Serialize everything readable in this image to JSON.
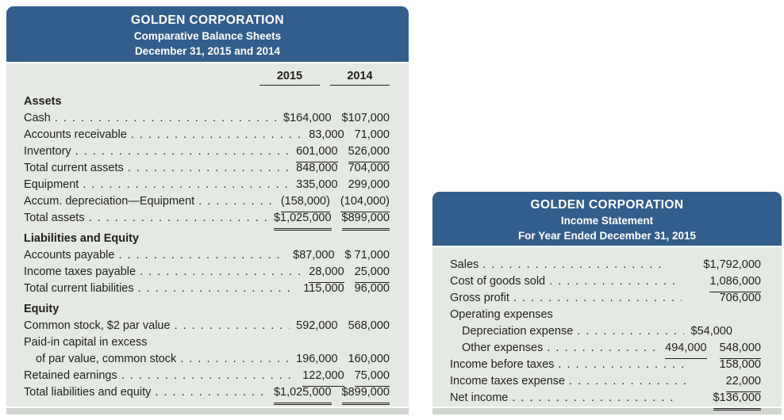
{
  "colors": {
    "header_blue": "#335e8c",
    "body_background": "#e4e9e3",
    "text_ink": "#221f1f",
    "bottom_strip": "#d2d6d1"
  },
  "balance_sheet": {
    "title": "GOLDEN CORPORATION",
    "line2": "Comparative Balance Sheets",
    "line3": "December 31, 2015 and 2014",
    "col_2015": "2015",
    "col_2014": "2014",
    "rows": [
      {
        "label": "Assets",
        "bold": true
      },
      {
        "label": "Cash",
        "dots": true,
        "cells": [
          {
            "pre": "$",
            "num": "164,000"
          },
          {
            "num": "$107,000"
          }
        ]
      },
      {
        "label": "Accounts receivable",
        "dots": true,
        "cells": [
          {
            "num": "83,000"
          },
          {
            "num": "71,000"
          }
        ]
      },
      {
        "label": "Inventory",
        "dots": true,
        "cells": [
          {
            "num": "601,000",
            "u": 1
          },
          {
            "num": "526,000",
            "u": 1
          }
        ]
      },
      {
        "label": "Total current assets",
        "dots": true,
        "cells": [
          {
            "num": "848,000"
          },
          {
            "num": "704,000"
          }
        ]
      },
      {
        "label": "Equipment",
        "dots": true,
        "cells": [
          {
            "num": "335,000"
          },
          {
            "num": "299,000"
          }
        ]
      },
      {
        "label": "Accum. depreciation—Equipment",
        "dots": true,
        "cells": [
          {
            "num": "(158,000)",
            "u": 1
          },
          {
            "num": "(104,000)",
            "u": 1
          }
        ]
      },
      {
        "label": "Total assets",
        "dots": true,
        "cells": [
          {
            "num": "$1,025,000",
            "u": 2
          },
          {
            "num": "$899,000",
            "u": 2
          }
        ]
      },
      {
        "label": "Liabilities and Equity",
        "bold": true,
        "section": true
      },
      {
        "label": "Accounts payable",
        "dots": true,
        "cells": [
          {
            "pre": "$",
            "num": "87,000"
          },
          {
            "num": "$ 71,000"
          }
        ]
      },
      {
        "label": "Income taxes payable",
        "dots": true,
        "cells": [
          {
            "num": "28,000",
            "u": 1
          },
          {
            "num": "25,000",
            "u": 1
          }
        ]
      },
      {
        "label": "Total current liabilities",
        "dots": true,
        "cells": [
          {
            "num": "115,000"
          },
          {
            "num": "96,000"
          }
        ]
      },
      {
        "label": "Equity",
        "bold": true,
        "section": true
      },
      {
        "label": "Common stock, $2 par value",
        "dots": true,
        "cells": [
          {
            "num": "592,000"
          },
          {
            "num": "568,000"
          }
        ]
      },
      {
        "label": "Paid-in capital in excess"
      },
      {
        "label": "of par value, common stock",
        "indent": 1,
        "dots": true,
        "cells": [
          {
            "num": "196,000"
          },
          {
            "num": "160,000"
          }
        ]
      },
      {
        "label": "Retained earnings",
        "dots": true,
        "cells": [
          {
            "num": "122,000",
            "u": 1
          },
          {
            "num": "75,000",
            "u": 1
          }
        ]
      },
      {
        "label": "Total liabilities and equity",
        "dots": true,
        "cells": [
          {
            "num": "$1,025,000",
            "u": 2
          },
          {
            "num": "$899,000",
            "u": 2
          }
        ]
      }
    ]
  },
  "income_statement": {
    "title": "GOLDEN CORPORATION",
    "line2": "Income Statement",
    "line3": "For Year Ended December 31, 2015",
    "rows": [
      {
        "label": "Sales",
        "dots": true,
        "cells": [
          null,
          {
            "num": "$1,792,000"
          }
        ]
      },
      {
        "label": "Cost of goods sold",
        "dots": true,
        "cells": [
          null,
          {
            "num": "1,086,000",
            "u": 1
          }
        ]
      },
      {
        "label": "Gross profit",
        "dots": true,
        "cells": [
          null,
          {
            "num": "706,000"
          }
        ]
      },
      {
        "label": "Operating expenses"
      },
      {
        "label": "Depreciation expense",
        "indent": 1,
        "dots": true,
        "cells": [
          {
            "pre": "$",
            "num": "54,000"
          },
          null
        ]
      },
      {
        "label": "Other expenses",
        "indent": 1,
        "dots": true,
        "cells": [
          {
            "num": "494,000",
            "u": 1
          },
          {
            "num": "548,000",
            "u": 1
          }
        ]
      },
      {
        "label": "Income before taxes",
        "dots": true,
        "cells": [
          null,
          {
            "num": "158,000"
          }
        ]
      },
      {
        "label": "Income taxes expense",
        "dots": true,
        "cells": [
          null,
          {
            "num": "22,000",
            "u": 1
          }
        ]
      },
      {
        "label": "Net income",
        "dots": true,
        "cells": [
          null,
          {
            "pre": "$",
            "num": "136,000",
            "u": 2
          }
        ]
      }
    ]
  }
}
